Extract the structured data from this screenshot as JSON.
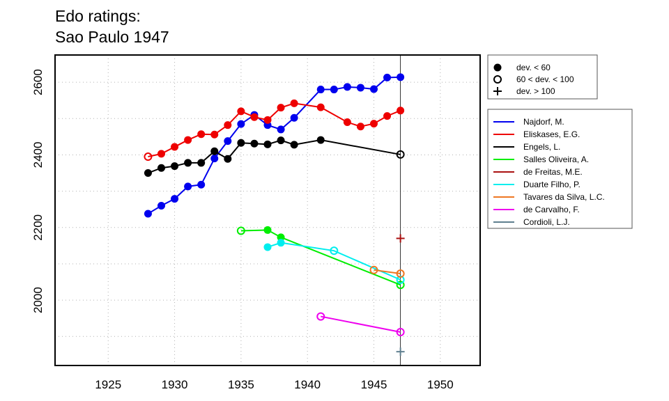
{
  "chart_data": {
    "type": "line",
    "title": "Edo ratings:",
    "subtitle": "Sao Paulo 1947",
    "xlabel": "",
    "ylabel": "",
    "xlim": [
      1921,
      1953
    ],
    "ylim": [
      1820,
      2675
    ],
    "x_ticks": [
      1925,
      1930,
      1935,
      1940,
      1945,
      1950
    ],
    "y_ticks": [
      2000,
      2200,
      2400,
      2600
    ],
    "grid": true,
    "reference_line_x": 1947,
    "marker_legend": [
      {
        "symbol": "filled",
        "label": "dev. < 60"
      },
      {
        "symbol": "open",
        "label": "60 < dev. < 100"
      },
      {
        "symbol": "plus",
        "label": "dev. > 100"
      }
    ],
    "series": [
      {
        "name": "Najdorf, M.",
        "color": "#0000ee",
        "points": [
          [
            1928,
            2238,
            "filled"
          ],
          [
            1929,
            2260,
            "filled"
          ],
          [
            1930,
            2279,
            "filled"
          ],
          [
            1931,
            2313,
            "filled"
          ],
          [
            1932,
            2318,
            "filled"
          ],
          [
            1933,
            2390,
            "filled"
          ],
          [
            1934,
            2438,
            "filled"
          ],
          [
            1935,
            2485,
            "filled"
          ],
          [
            1936,
            2510,
            "filled"
          ],
          [
            1937,
            2482,
            "filled"
          ],
          [
            1938,
            2470,
            "filled"
          ],
          [
            1939,
            2502,
            "filled"
          ],
          [
            1941,
            2580,
            "filled"
          ],
          [
            1942,
            2580,
            "filled"
          ],
          [
            1943,
            2587,
            "filled"
          ],
          [
            1944,
            2585,
            "filled"
          ],
          [
            1945,
            2581,
            "filled"
          ],
          [
            1946,
            2613,
            "filled"
          ],
          [
            1947,
            2614,
            "filled"
          ]
        ]
      },
      {
        "name": "Eliskases, E.G.",
        "color": "#ee0000",
        "points": [
          [
            1928,
            2395,
            "open"
          ],
          [
            1929,
            2403,
            "filled"
          ],
          [
            1930,
            2422,
            "filled"
          ],
          [
            1931,
            2441,
            "filled"
          ],
          [
            1932,
            2457,
            "filled"
          ],
          [
            1933,
            2456,
            "filled"
          ],
          [
            1934,
            2482,
            "filled"
          ],
          [
            1935,
            2520,
            "filled"
          ],
          [
            1936,
            2504,
            "filled"
          ],
          [
            1937,
            2496,
            "filled"
          ],
          [
            1938,
            2530,
            "filled"
          ],
          [
            1939,
            2542,
            "filled"
          ],
          [
            1941,
            2531,
            "filled"
          ],
          [
            1943,
            2490,
            "filled"
          ],
          [
            1944,
            2478,
            "filled"
          ],
          [
            1945,
            2486,
            "filled"
          ],
          [
            1946,
            2507,
            "filled"
          ],
          [
            1947,
            2522,
            "filled"
          ]
        ]
      },
      {
        "name": "Engels, L.",
        "color": "#000000",
        "points": [
          [
            1928,
            2350,
            "filled"
          ],
          [
            1929,
            2364,
            "filled"
          ],
          [
            1930,
            2369,
            "filled"
          ],
          [
            1931,
            2378,
            "filled"
          ],
          [
            1932,
            2378,
            "filled"
          ],
          [
            1933,
            2410,
            "filled"
          ],
          [
            1934,
            2389,
            "filled"
          ],
          [
            1935,
            2433,
            "filled"
          ],
          [
            1936,
            2431,
            "filled"
          ],
          [
            1937,
            2429,
            "filled"
          ],
          [
            1938,
            2440,
            "filled"
          ],
          [
            1939,
            2428,
            "filled"
          ],
          [
            1941,
            2441,
            "filled"
          ],
          [
            1947,
            2401,
            "open"
          ]
        ]
      },
      {
        "name": "Salles Oliveira, A.",
        "color": "#00ee00",
        "points": [
          [
            1935,
            2191,
            "open"
          ],
          [
            1937,
            2193,
            "filled"
          ],
          [
            1938,
            2173,
            "filled"
          ],
          [
            1947,
            2042,
            "open"
          ]
        ]
      },
      {
        "name": "de Freitas, M.E.",
        "color": "#aa1111",
        "points": [
          [
            1947,
            2170,
            "plus"
          ]
        ]
      },
      {
        "name": "Duarte Filho, P.",
        "color": "#00eeee",
        "points": [
          [
            1937,
            2146,
            "filled"
          ],
          [
            1938,
            2158,
            "filled"
          ],
          [
            1942,
            2136,
            "open"
          ],
          [
            1947,
            2056,
            "open"
          ]
        ]
      },
      {
        "name": "Tavares da Silva, L.C.",
        "color": "#ee7722",
        "points": [
          [
            1945,
            2083,
            "open"
          ],
          [
            1947,
            2073,
            "open"
          ]
        ]
      },
      {
        "name": "de Carvalho, F.",
        "color": "#ee00ee",
        "points": [
          [
            1941,
            1955,
            "open"
          ],
          [
            1947,
            1912,
            "open"
          ]
        ]
      },
      {
        "name": "Cordioli, L.J.",
        "color": "#5f7f8f",
        "points": [
          [
            1947,
            1858,
            "plus"
          ]
        ]
      }
    ]
  }
}
